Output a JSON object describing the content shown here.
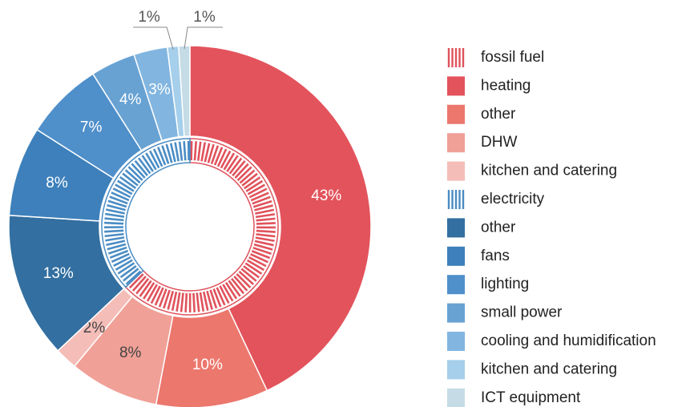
{
  "chart_data": {
    "type": "donut",
    "groups": [
      {
        "name": "fossil fuel",
        "color": "#e0525b",
        "value": 63,
        "children": [
          {
            "name": "heating",
            "color": "#e3535c",
            "value": 43,
            "value_label": "43%"
          },
          {
            "name": "other",
            "color": "#ec776d",
            "value": 10,
            "value_label": "10%"
          },
          {
            "name": "DHW",
            "color": "#f0a097",
            "value": 8,
            "value_label": "8%"
          },
          {
            "name": "kitchen and catering",
            "color": "#f5bdb8",
            "value": 2,
            "value_label": "2%"
          }
        ]
      },
      {
        "name": "electricity",
        "color": "#4a8cc4",
        "value": 37,
        "children": [
          {
            "name": "other",
            "color": "#336fa0",
            "value": 13,
            "value_label": "13%"
          },
          {
            "name": "fans",
            "color": "#3d80bb",
            "value": 8,
            "value_label": "8%"
          },
          {
            "name": "lighting",
            "color": "#4f8fca",
            "value": 7,
            "value_label": "7%"
          },
          {
            "name": "small power",
            "color": "#68a2d3",
            "value": 4,
            "value_label": "4%"
          },
          {
            "name": "cooling and humidification",
            "color": "#82b6e0",
            "value": 3,
            "value_label": "3%"
          },
          {
            "name": "kitchen and catering",
            "color": "#a5cfeb",
            "value": 1,
            "value_label": "1%"
          },
          {
            "name": "ICT equipment",
            "color": "#c5dbe5",
            "value": 1,
            "value_label": "1%"
          }
        ]
      }
    ]
  }
}
